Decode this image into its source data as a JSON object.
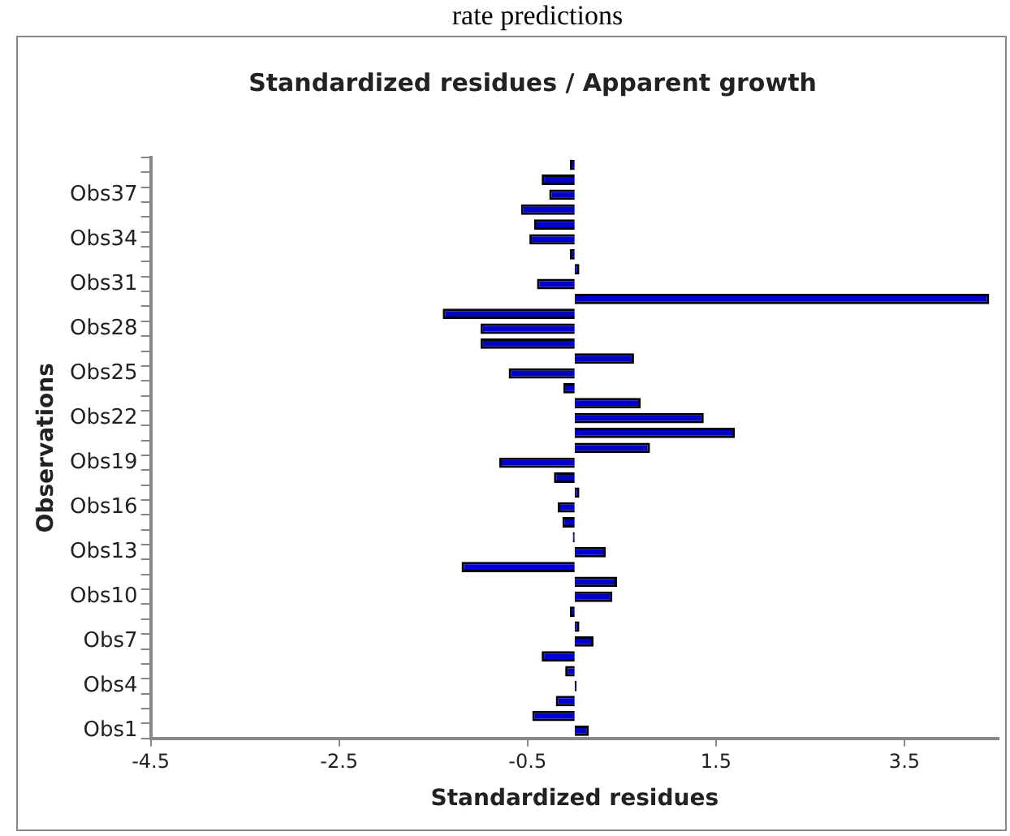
{
  "chart_data": {
    "type": "bar",
    "orientation": "horizontal",
    "title": "Standardized residues / Apparent growth",
    "xlabel": "Standardized residues",
    "ylabel": "Observations",
    "annotations": [
      "rate predictions"
    ],
    "categories": [
      null,
      null,
      "Obs37",
      null,
      null,
      "Obs34",
      null,
      null,
      "Obs31",
      null,
      null,
      "Obs28",
      null,
      null,
      "Obs25",
      null,
      null,
      "Obs22",
      null,
      null,
      "Obs19",
      null,
      null,
      "Obs16",
      null,
      null,
      "Obs13",
      null,
      null,
      "Obs10",
      null,
      null,
      "Obs7",
      null,
      null,
      "Obs4",
      null,
      null,
      "Obs1"
    ],
    "series": [
      {
        "color": "#0000cc",
        "values": [
          -0.05,
          -0.35,
          -0.27,
          -0.57,
          -0.43,
          -0.48,
          -0.05,
          0.05,
          -0.4,
          4.4,
          -1.4,
          -1.0,
          -1.0,
          0.63,
          -0.7,
          -0.12,
          0.7,
          1.37,
          1.7,
          0.8,
          -0.8,
          -0.22,
          0.05,
          -0.18,
          -0.13,
          -0.02,
          0.33,
          -1.2,
          0.45,
          0.4,
          -0.05,
          0.05,
          0.2,
          -0.35,
          -0.1,
          0.02,
          -0.2,
          -0.45,
          0.15
        ]
      }
    ],
    "xlim": [
      -4.5,
      4.5
    ],
    "xticks": [
      -4.5,
      -2.5,
      -0.5,
      1.5,
      3.5
    ],
    "grid": false,
    "legend": false
  }
}
